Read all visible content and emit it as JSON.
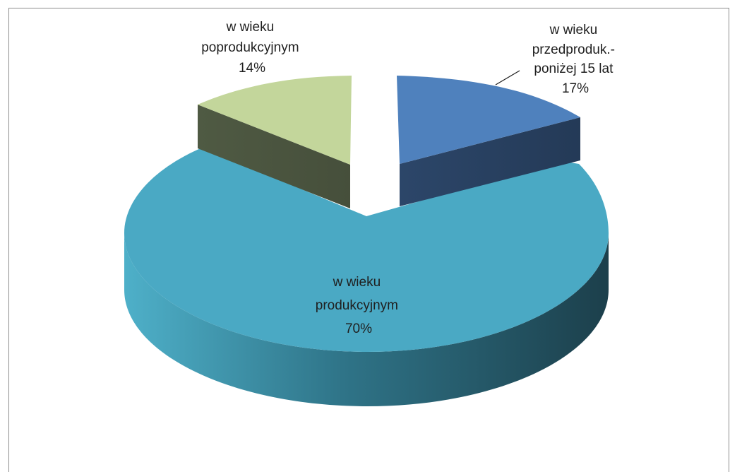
{
  "chart_data": {
    "type": "pie",
    "variant": "3d-exploded",
    "title": "",
    "legend": "none",
    "slices": [
      {
        "label_lines": [
          "w wieku",
          "przedproduk.-",
          "poniżej 15 lat"
        ],
        "value_label": "17%",
        "value": 17,
        "color": "#4f81bd",
        "side_color": "#263d5e"
      },
      {
        "label_lines": [
          "w wieku",
          "produkcyjnym"
        ],
        "value_label": "70%",
        "value": 70,
        "color": "#4bacc6",
        "side_color": "#2a6f82"
      },
      {
        "label_lines": [
          "w wieku",
          "poprodukcyjnym"
        ],
        "value_label": "14%",
        "value": 14,
        "color": "#c3d69b",
        "side_color": "#4f5640"
      }
    ]
  }
}
